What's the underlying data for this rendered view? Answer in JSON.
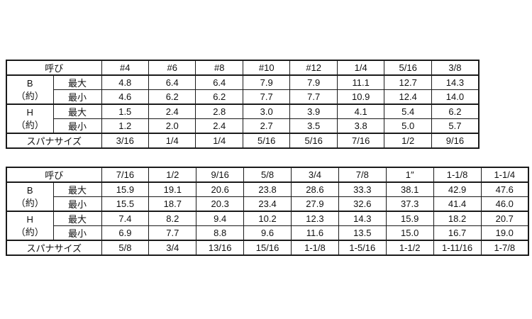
{
  "labels": {
    "nominal": "呼び",
    "b": "B",
    "h": "H",
    "approx": "（約）",
    "max": "最大",
    "min": "最小",
    "spanner": "スパナサイズ"
  },
  "tables": [
    {
      "sizes": [
        "#4",
        "#6",
        "#8",
        "#10",
        "#12",
        "1/4",
        "5/16",
        "3/8"
      ],
      "b_max": [
        "4.8",
        "6.4",
        "6.4",
        "7.9",
        "7.9",
        "11.1",
        "12.7",
        "14.3"
      ],
      "b_min": [
        "4.6",
        "6.2",
        "6.2",
        "7.7",
        "7.7",
        "10.9",
        "12.4",
        "14.0"
      ],
      "h_max": [
        "1.5",
        "2.4",
        "2.8",
        "3.0",
        "3.9",
        "4.1",
        "5.4",
        "6.2"
      ],
      "h_min": [
        "1.2",
        "2.0",
        "2.4",
        "2.7",
        "3.5",
        "3.8",
        "5.0",
        "5.7"
      ],
      "spanner": [
        "3/16",
        "1/4",
        "1/4",
        "5/16",
        "5/16",
        "7/16",
        "1/2",
        "9/16"
      ]
    },
    {
      "sizes": [
        "7/16",
        "1/2",
        "9/16",
        "5/8",
        "3/4",
        "7/8",
        "1″",
        "1-1/8",
        "1-1/4"
      ],
      "b_max": [
        "15.9",
        "19.1",
        "20.6",
        "23.8",
        "28.6",
        "33.3",
        "38.1",
        "42.9",
        "47.6"
      ],
      "b_min": [
        "15.5",
        "18.7",
        "20.3",
        "23.4",
        "27.9",
        "32.6",
        "37.3",
        "41.4",
        "46.0"
      ],
      "h_max": [
        "7.4",
        "8.2",
        "9.4",
        "10.2",
        "12.3",
        "14.3",
        "15.9",
        "18.2",
        "20.7"
      ],
      "h_min": [
        "6.9",
        "7.7",
        "8.8",
        "9.6",
        "11.6",
        "13.5",
        "15.0",
        "16.7",
        "19.0"
      ],
      "spanner": [
        "5/8",
        "3/4",
        "13/16",
        "15/16",
        "1-1/8",
        "1-5/16",
        "1-1/2",
        "1-11/16",
        "1-7/8"
      ]
    }
  ]
}
